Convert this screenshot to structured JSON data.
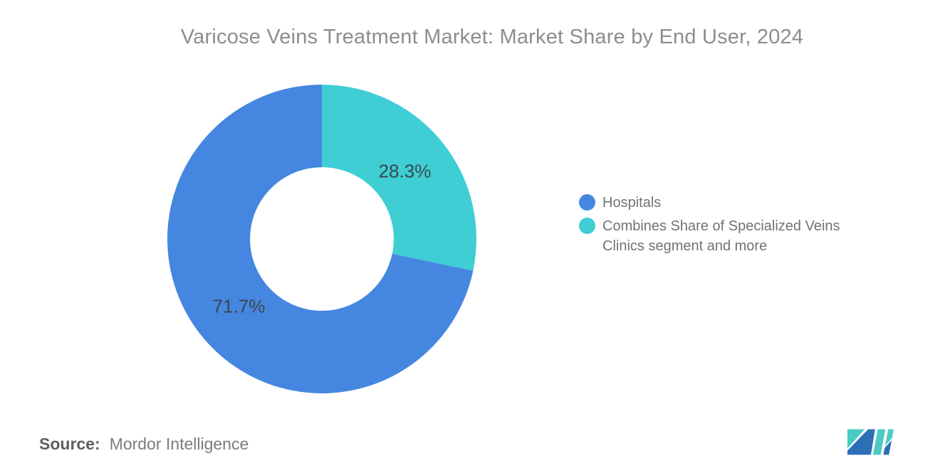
{
  "title": "Varicose Veins Treatment Market: Market Share by End User, 2024",
  "chart_data": {
    "type": "pie",
    "donut": true,
    "title": "Varicose Veins Treatment Market: Market Share by End User, 2024",
    "slices": [
      {
        "label": "Combines Share of Specialized Veins Clinics segment and more",
        "value": 28.3,
        "value_label": "28.3%",
        "color": "#3ECED4"
      },
      {
        "label": "Hospitals",
        "value": 71.7,
        "value_label": "71.7%",
        "color": "#4587E0"
      }
    ],
    "start_angle_deg": 0,
    "direction": "clockwise",
    "inner_radius_ratio": 0.465,
    "value_label_color": "#3C4650",
    "legend_position": "right",
    "background": "#FFFFFF"
  },
  "legend": {
    "items": [
      {
        "label": "Hospitals",
        "color": "#4587E0"
      },
      {
        "label": "Combines Share of Specialized Veins Clinics segment and more",
        "color": "#3ECED4"
      }
    ]
  },
  "source": {
    "label": "Source:",
    "value": "Mordor Intelligence"
  },
  "logo": {
    "name": "Mordor Intelligence",
    "blue": "#2D6FB7",
    "teal": "#4ACCC5"
  }
}
